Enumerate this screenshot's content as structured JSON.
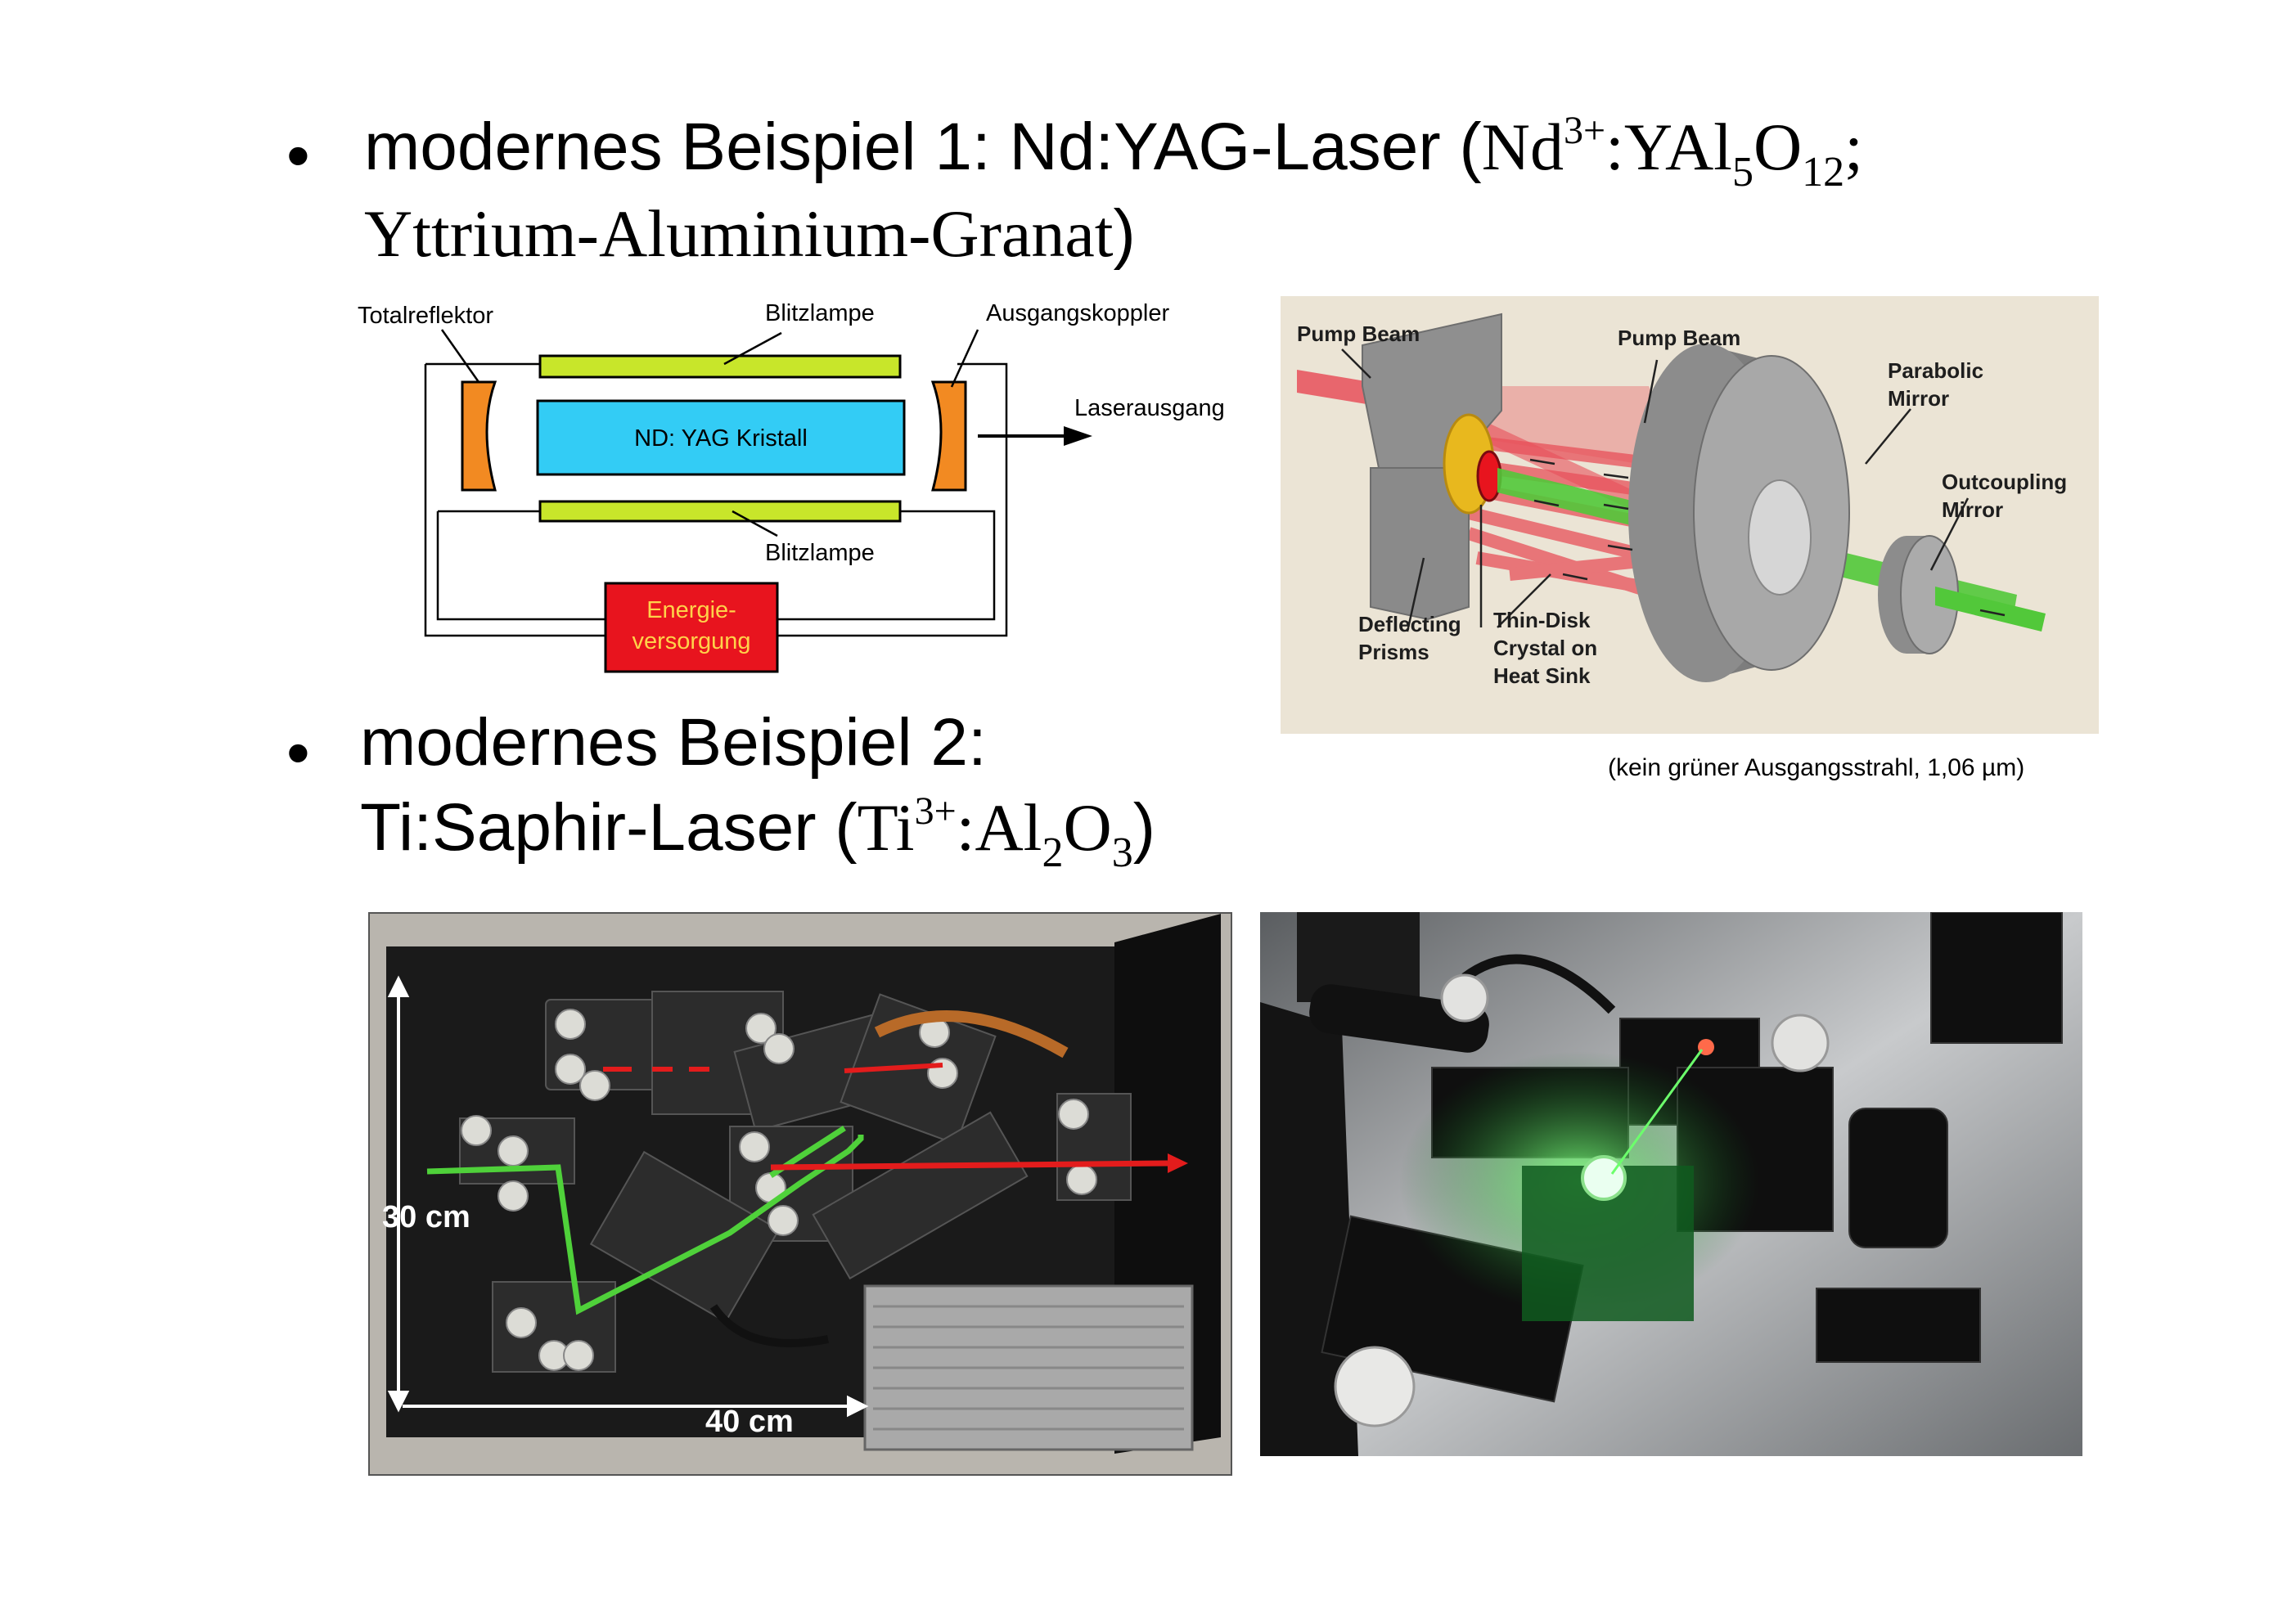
{
  "bullet_glyph": "•",
  "example1": {
    "prefix": "modernes Beispiel 1: Nd:YAG-Laser (",
    "f_nd": "Nd",
    "f_sup": "3+",
    "f_yal": ":YAl",
    "f_sub5": "5",
    "f_o": "O",
    "f_sub12": "12",
    "f_semicolon": ";",
    "line2": "Yttrium-Aluminium-Granat",
    "close": ")"
  },
  "diagram1": {
    "totalreflektor": "Totalreflektor",
    "blitzlampe_top": "Blitzlampe",
    "ausgangskoppler": "Ausgangskoppler",
    "laserausgang": "Laserausgang",
    "crystal": "ND: YAG Kristall",
    "blitzlampe_bottom": "Blitzlampe",
    "energie_1": "Energie-",
    "energie_2": "versorgung",
    "colors": {
      "lamp": "#c8e62a",
      "crystal": "#33ccf5",
      "mirror": "#f28a22",
      "power": "#e8141e"
    }
  },
  "diagram2": {
    "pump_beam_left": "Pump Beam",
    "pump_beam_right": "Pump Beam",
    "parabolic_1": "Parabolic",
    "parabolic_2": "Mirror",
    "outcoupling_1": "Outcoupling",
    "outcoupling_2": "Mirror",
    "deflecting_1": "Deflecting",
    "deflecting_2": "Prisms",
    "thin_disk_1": "Thin-Disk",
    "thin_disk_2": "Crystal on",
    "thin_disk_3": "Heat Sink",
    "colors": {
      "background": "#ebe4d5",
      "mirror": "#a8a8a8",
      "beam_red": "#e8505a",
      "beam_green": "#52c83a"
    }
  },
  "diagram2_caption": "(kein grüner Ausgangsstrahl, 1,06 µm)",
  "example2": {
    "line1": "modernes Beispiel 2:",
    "prefix": "Ti:Saphir-Laser (",
    "f_ti": "Ti",
    "f_sup": "3+",
    "f_al": ":Al",
    "f_sub2": "2",
    "f_o": "O",
    "f_sub3": "3",
    "close": ")"
  },
  "photo1": {
    "label_height": "30 cm",
    "label_width": "40 cm"
  }
}
